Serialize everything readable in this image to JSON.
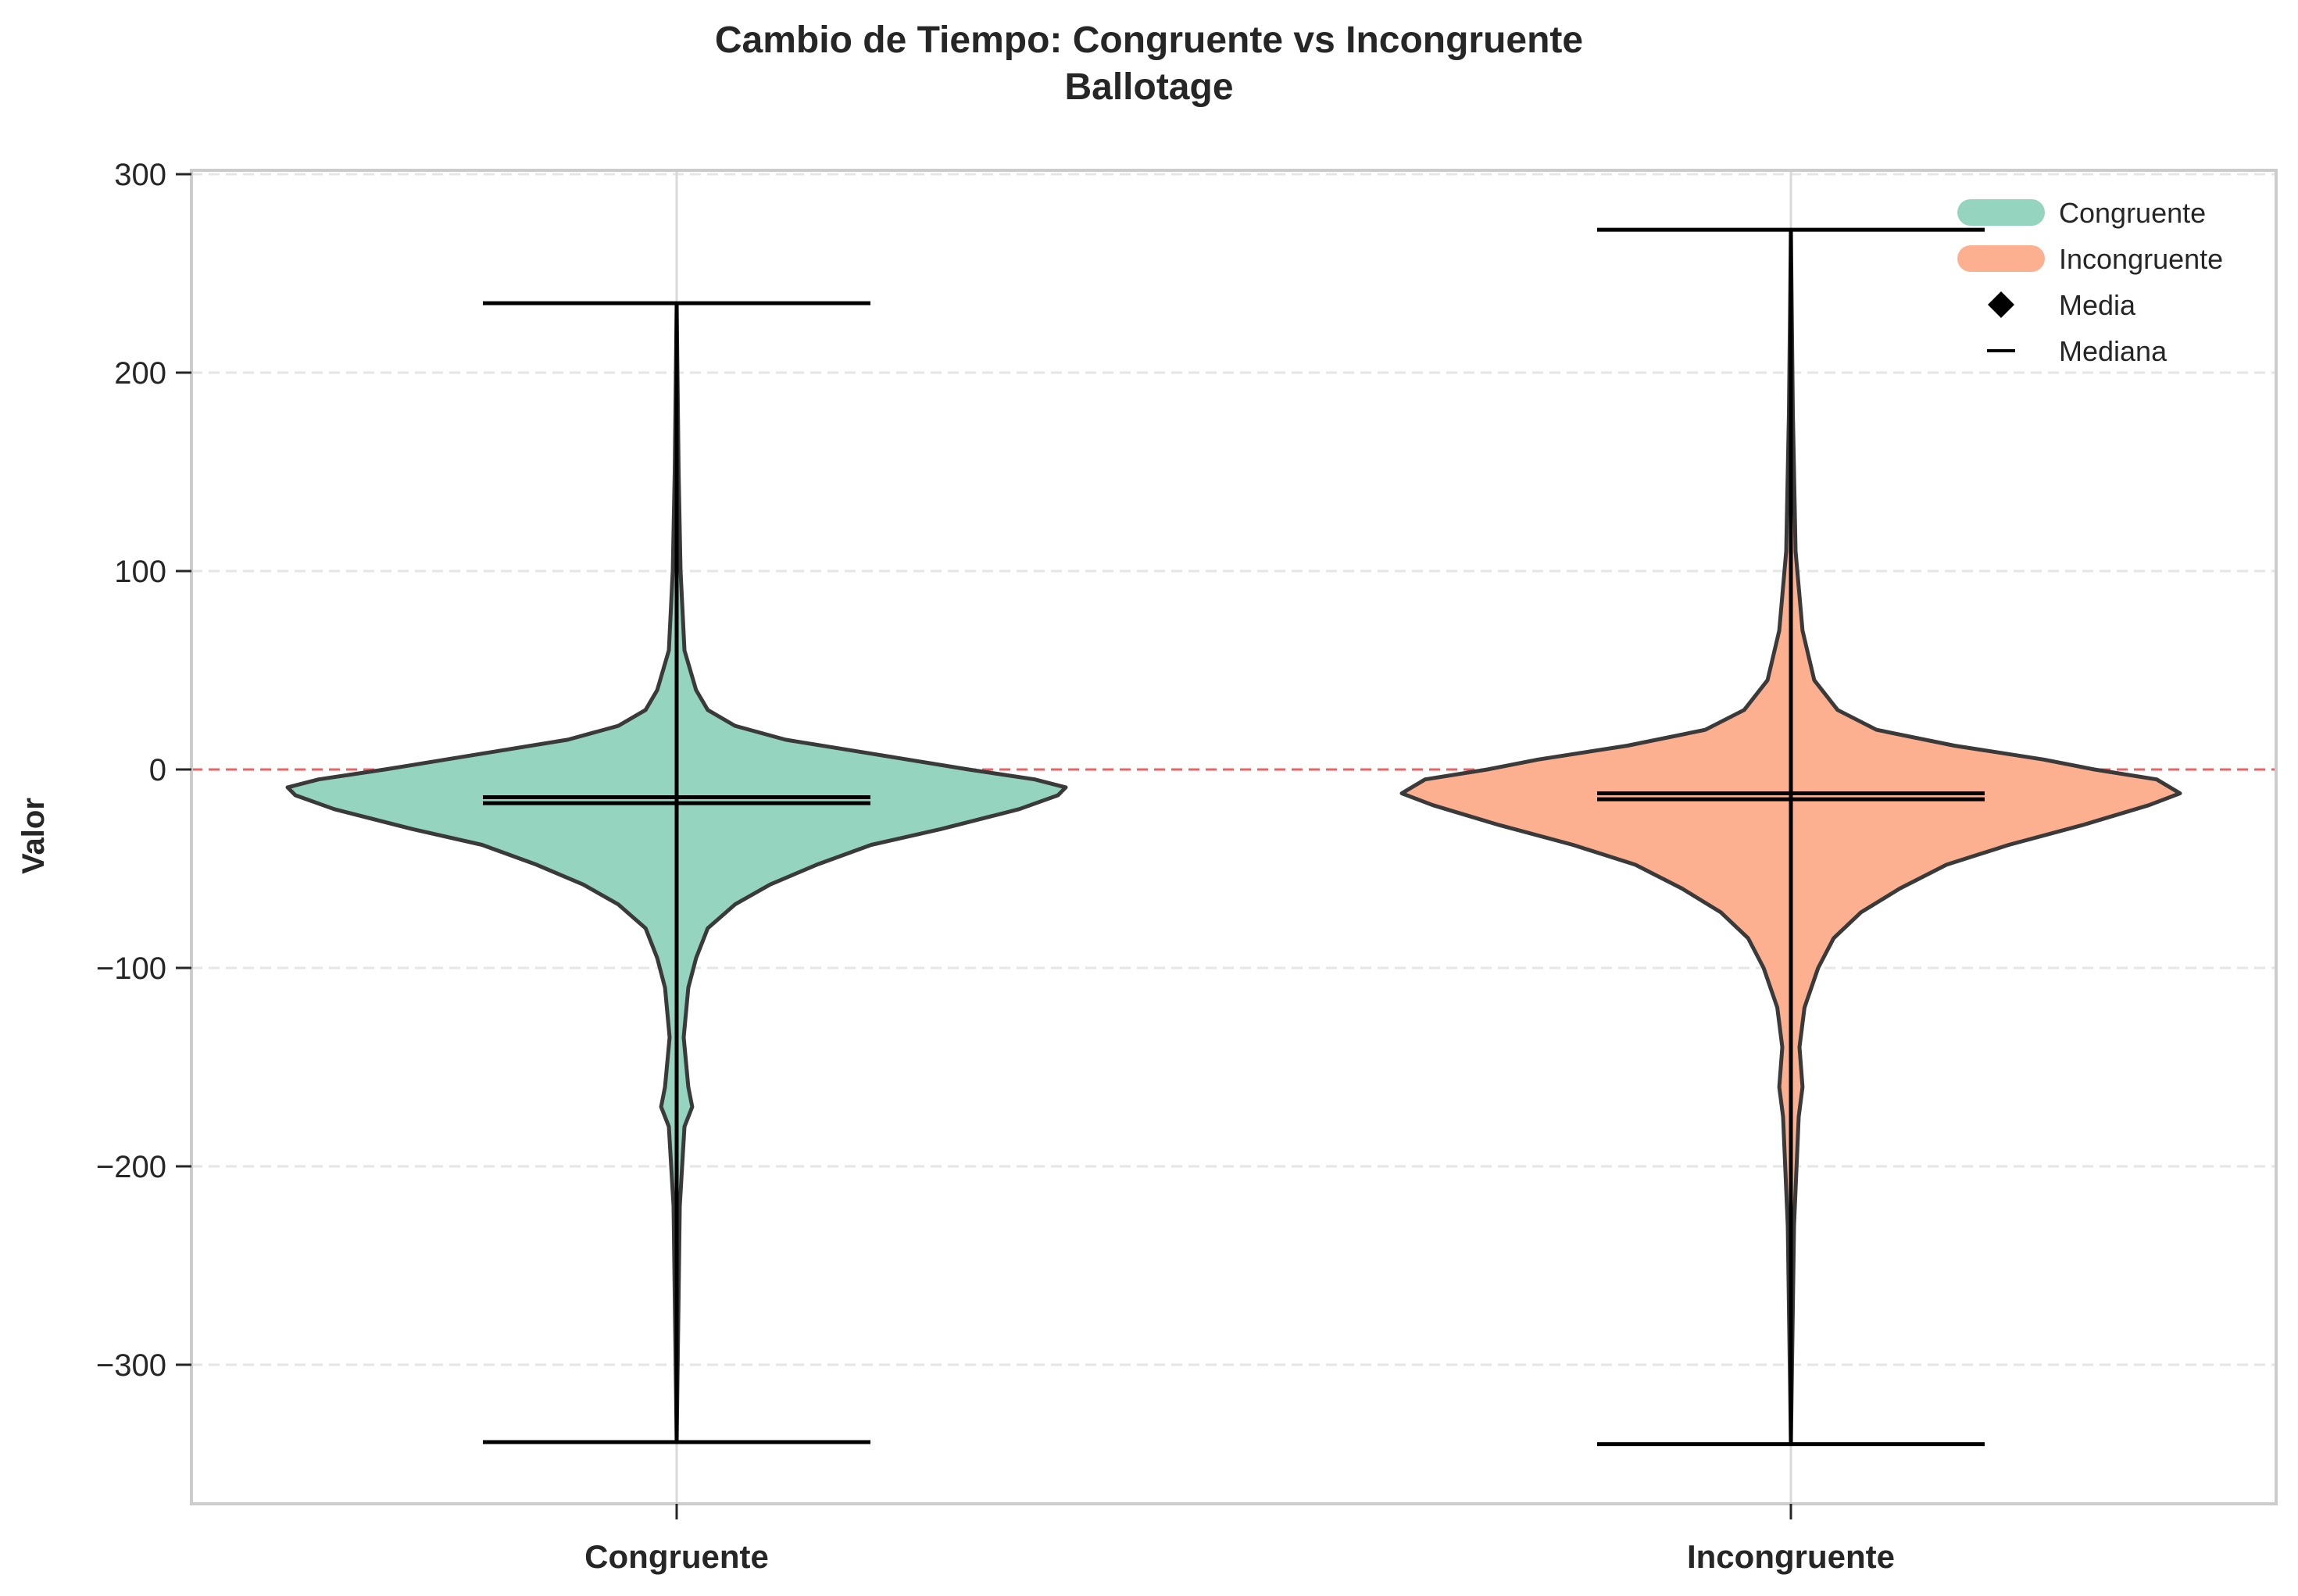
{
  "chart_data": {
    "type": "violin",
    "title": "Cambio de Tiempo: Congruente vs Incongruente",
    "subtitle": "Ballotage",
    "ylabel": "Valor",
    "xlabel": "",
    "categories": [
      "Congruente",
      "Incongruente"
    ],
    "ylim": [
      -370,
      302
    ],
    "yticks": [
      300,
      200,
      100,
      0,
      -100,
      -200,
      -300
    ],
    "ytick_labels": [
      "300",
      "200",
      "100",
      "0",
      "−100",
      "−200",
      "−300"
    ],
    "grid": "horizontal dashed",
    "reference_line": {
      "y": 0,
      "color": "#e8474a",
      "style": "dashed"
    },
    "legend_position": "top-right",
    "legend": [
      {
        "label": "Congruente",
        "kind": "patch",
        "color": "#95d5bf"
      },
      {
        "label": "Incongruente",
        "kind": "patch",
        "color": "#fcb090"
      },
      {
        "label": "Media",
        "kind": "diamond",
        "color": "#000000"
      },
      {
        "label": "Mediana",
        "kind": "line",
        "color": "#000000"
      }
    ],
    "series": [
      {
        "name": "Congruente",
        "color": "#95d5bf",
        "max": 235,
        "min": -339,
        "mean": -14,
        "median": -17,
        "profile": [
          [
            235,
            0.0
          ],
          [
            150,
            0.005
          ],
          [
            100,
            0.01
          ],
          [
            60,
            0.02
          ],
          [
            40,
            0.05
          ],
          [
            30,
            0.08
          ],
          [
            22,
            0.15
          ],
          [
            15,
            0.28
          ],
          [
            8,
            0.5
          ],
          [
            0,
            0.75
          ],
          [
            -5,
            0.92
          ],
          [
            -9,
            1.0
          ],
          [
            -13,
            0.98
          ],
          [
            -20,
            0.88
          ],
          [
            -30,
            0.68
          ],
          [
            -38,
            0.5
          ],
          [
            -48,
            0.36
          ],
          [
            -58,
            0.24
          ],
          [
            -68,
            0.15
          ],
          [
            -80,
            0.08
          ],
          [
            -95,
            0.05
          ],
          [
            -110,
            0.03
          ],
          [
            -135,
            0.018
          ],
          [
            -160,
            0.03
          ],
          [
            -170,
            0.04
          ],
          [
            -180,
            0.02
          ],
          [
            -220,
            0.008
          ],
          [
            -339,
            0.0
          ]
        ]
      },
      {
        "name": "Incongruente",
        "color": "#fcb090",
        "max": 272,
        "min": -340,
        "mean": -12,
        "median": -15,
        "profile": [
          [
            272,
            0.0
          ],
          [
            180,
            0.005
          ],
          [
            110,
            0.012
          ],
          [
            70,
            0.03
          ],
          [
            45,
            0.06
          ],
          [
            30,
            0.12
          ],
          [
            20,
            0.22
          ],
          [
            12,
            0.42
          ],
          [
            5,
            0.65
          ],
          [
            0,
            0.78
          ],
          [
            -5,
            0.94
          ],
          [
            -12,
            1.0
          ],
          [
            -18,
            0.92
          ],
          [
            -28,
            0.75
          ],
          [
            -38,
            0.56
          ],
          [
            -48,
            0.4
          ],
          [
            -60,
            0.28
          ],
          [
            -72,
            0.18
          ],
          [
            -85,
            0.11
          ],
          [
            -100,
            0.07
          ],
          [
            -120,
            0.035
          ],
          [
            -140,
            0.022
          ],
          [
            -160,
            0.03
          ],
          [
            -175,
            0.02
          ],
          [
            -230,
            0.008
          ],
          [
            -340,
            0.0
          ]
        ]
      }
    ]
  }
}
